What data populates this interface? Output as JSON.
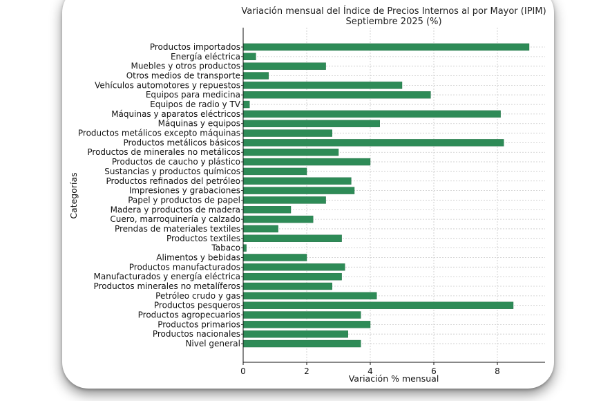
{
  "chart_data": {
    "type": "bar",
    "orientation": "horizontal",
    "title": "Variación mensual del Índice de Precios Internos al por Mayor (IPIM)",
    "subtitle": "Septiembre 2025 (%)",
    "xlabel": "Variación % mensual",
    "ylabel": "Categorías",
    "xlim": [
      0,
      9.5
    ],
    "xticks": [
      0,
      2,
      4,
      6,
      8
    ],
    "grid": true,
    "bar_color": "#2e8b57",
    "categories": [
      "Productos importados",
      "Energía eléctrica",
      "Muebles y otros productos",
      "Otros medios de transporte",
      "Vehículos automotores y repuestos",
      "Equipos para medicina",
      "Equipos de radio y TV",
      "Máquinas y aparatos eléctricos",
      "Máquinas y equipos",
      "Productos metálicos excepto máquinas",
      "Productos metálicos básicos",
      "Productos de minerales no metálicos",
      "Productos de caucho y plástico",
      "Sustancias y productos químicos",
      "Productos refinados del petróleo",
      "Impresiones y grabaciones",
      "Papel y productos de papel",
      "Madera y productos de madera",
      "Cuero, marroquinería y calzado",
      "Prendas de materiales textiles",
      "Productos textiles",
      "Tabaco",
      "Alimentos y bebidas",
      "Productos manufacturados",
      "Manufacturados y energía eléctrica",
      "Productos minerales no metalíferos",
      "Petróleo crudo y gas",
      "Productos pesqueros",
      "Productos agropecuarios",
      "Productos primarios",
      "Productos nacionales",
      "Nivel general"
    ],
    "values": [
      9.0,
      0.4,
      2.6,
      0.8,
      5.0,
      5.9,
      0.2,
      8.1,
      4.3,
      2.8,
      8.2,
      3.0,
      4.0,
      2.0,
      3.4,
      3.5,
      2.6,
      1.5,
      2.2,
      1.1,
      3.1,
      0.1,
      2.0,
      3.2,
      3.1,
      2.8,
      4.2,
      8.5,
      3.7,
      4.0,
      3.3,
      3.7
    ]
  }
}
